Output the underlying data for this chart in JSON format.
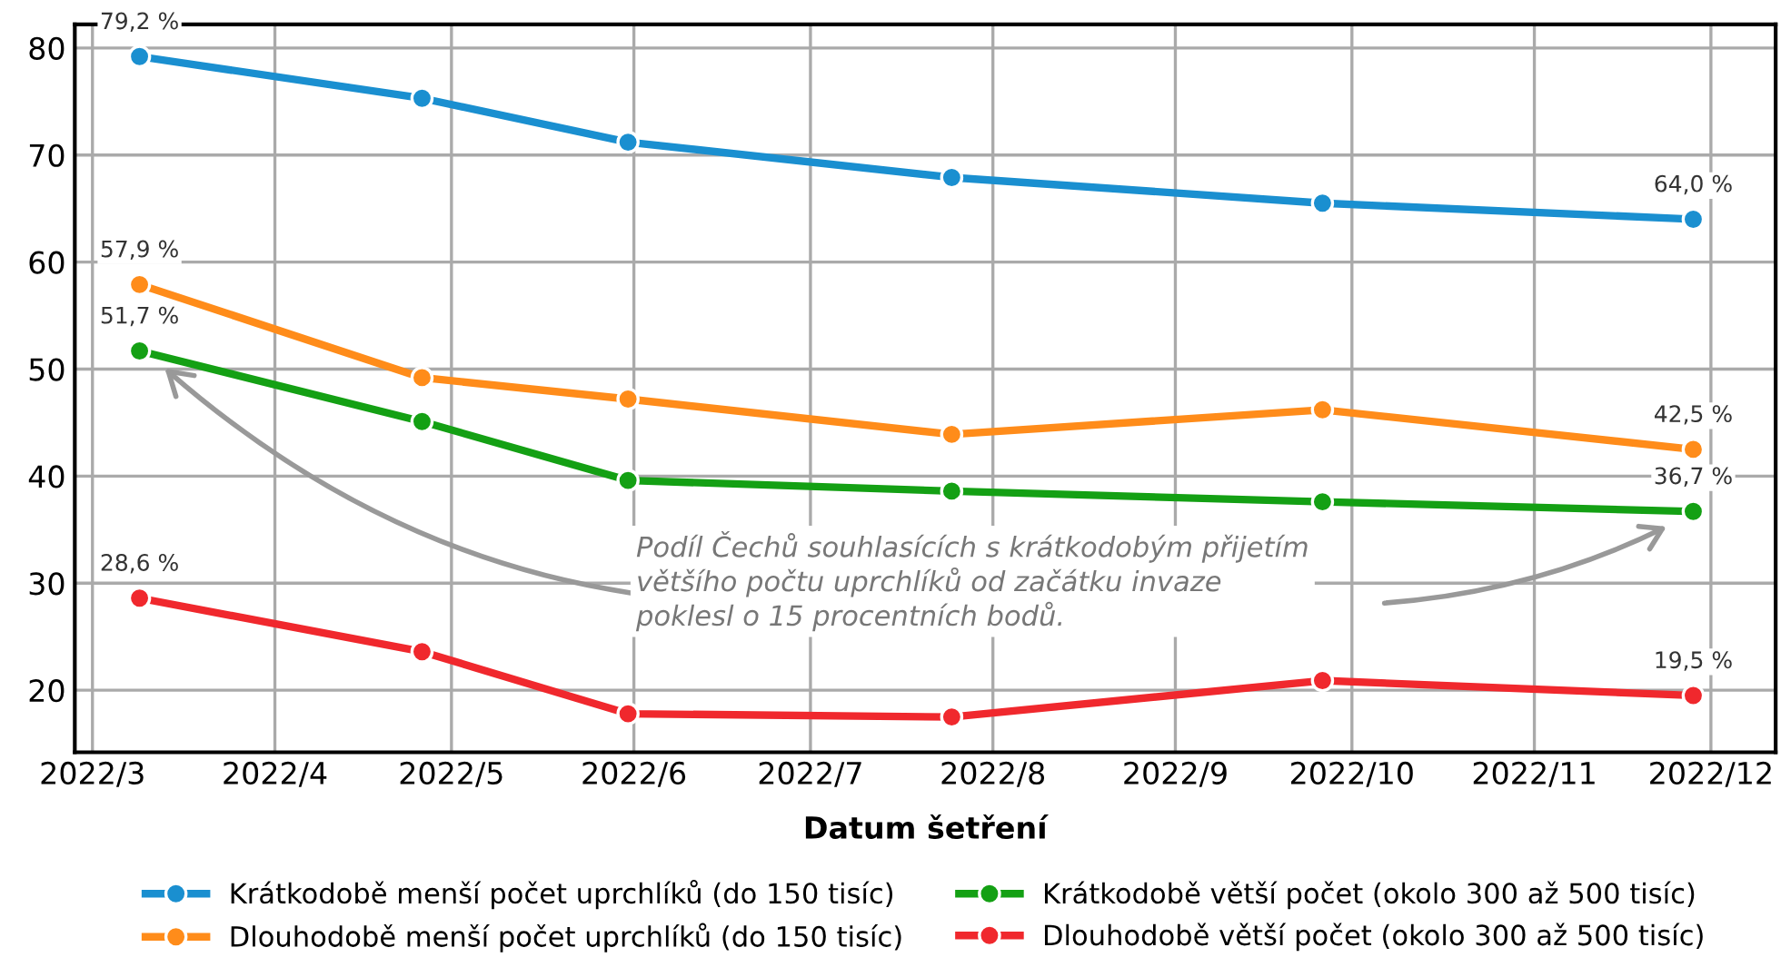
{
  "chart_data": {
    "type": "line",
    "xlabel": "Datum šetření",
    "x": [
      "2022-03-09",
      "2022-04-26",
      "2022-05-31",
      "2022-07-25",
      "2022-09-26",
      "2022-11-28"
    ],
    "xlim": [
      "2022-02-26",
      "2022-12-12"
    ],
    "xticks": [
      {
        "value": "2022-03-01",
        "label": "2022/3"
      },
      {
        "value": "2022-04-01",
        "label": "2022/4"
      },
      {
        "value": "2022-05-01",
        "label": "2022/5"
      },
      {
        "value": "2022-06-01",
        "label": "2022/6"
      },
      {
        "value": "2022-07-01",
        "label": "2022/7"
      },
      {
        "value": "2022-08-01",
        "label": "2022/8"
      },
      {
        "value": "2022-09-01",
        "label": "2022/9"
      },
      {
        "value": "2022-10-01",
        "label": "2022/10"
      },
      {
        "value": "2022-11-01",
        "label": "2022/11"
      },
      {
        "value": "2022-12-01",
        "label": "2022/12"
      }
    ],
    "ylim": [
      14.2,
      82.2
    ],
    "yticks": [
      20,
      30,
      40,
      50,
      60,
      70,
      80
    ],
    "series": [
      {
        "name": "Krátkodobě menší počet uprchlíků (do 150 tisíc)",
        "color": "#1a8fd0",
        "values": [
          79.2,
          75.3,
          71.2,
          67.9,
          65.5,
          64.0
        ],
        "value_labels": [
          "79,2 %",
          null,
          null,
          null,
          null,
          "64,0 %"
        ]
      },
      {
        "name": "Dlouhodobě menší počet uprchlíků (do 150 tisíc)",
        "color": "#ff8c1a",
        "values": [
          57.9,
          49.2,
          47.2,
          43.9,
          46.2,
          42.5
        ],
        "value_labels": [
          "57,9 %",
          null,
          null,
          null,
          null,
          "42,5 %"
        ]
      },
      {
        "name": "Krátkodobě větší počet (okolo 300 až 500 tisíc)",
        "color": "#14a014",
        "values": [
          51.7,
          45.1,
          39.6,
          38.6,
          37.6,
          36.7
        ],
        "value_labels": [
          "51,7 %",
          null,
          null,
          null,
          null,
          "36,7 %"
        ]
      },
      {
        "name": "Dlouhodobě větší počet (okolo 300 až 500 tisíc)",
        "color": "#f0282d",
        "values": [
          28.6,
          23.6,
          17.8,
          17.5,
          20.9,
          19.5
        ],
        "value_labels": [
          "28,6 %",
          null,
          null,
          null,
          null,
          "19,5 %"
        ]
      }
    ],
    "annotations": [
      "Podíl Čechů souhlasících s krátkodobým přijetím\nvětšího počtu uprchlíků od začátku invaze\npoklesl o 15 procentních bodů."
    ],
    "grid": true,
    "legend": "bottom",
    "marker": "circle",
    "line_style": "solid"
  }
}
